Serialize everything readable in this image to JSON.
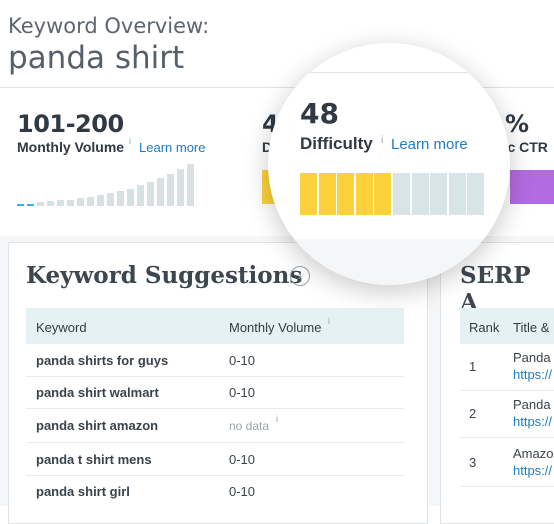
{
  "header": {
    "label": "Keyword Overview:",
    "keyword": "panda shirt"
  },
  "metrics": {
    "volume": {
      "value": "101-200",
      "label": "Monthly Volume",
      "info": "i",
      "learn": "Learn more",
      "bars": [
        0.05,
        0.05,
        0.08,
        0.1,
        0.12,
        0.14,
        0.17,
        0.2,
        0.24,
        0.28,
        0.33,
        0.38,
        0.45,
        0.52,
        0.6,
        0.7,
        0.8,
        0.92
      ],
      "bar_colors": {
        "low": "#3ab0e8",
        "bar": "#d7e1e3"
      }
    },
    "difficulty_partial": {
      "value": "4",
      "label": "D"
    },
    "ctr_partial": {
      "value": "%",
      "label": "nic CTR"
    }
  },
  "lens": {
    "value": "48",
    "label": "Difficulty",
    "info": "i",
    "learn": "Learn more",
    "segments_total": 10,
    "segments_filled": 5,
    "colors": {
      "filled": "#fcd23a",
      "empty": "#d8e4e5"
    }
  },
  "suggestions": {
    "title": "Keyword Suggestions",
    "go_icon": "›",
    "columns": {
      "keyword": "Keyword",
      "volume": "Monthly Volume",
      "volume_info": "i"
    },
    "rows": [
      {
        "keyword": "panda shirts for guys",
        "volume": "0-10"
      },
      {
        "keyword": "panda shirt walmart",
        "volume": "0-10"
      },
      {
        "keyword": "panda shirt amazon",
        "volume": "no data",
        "info": "i"
      },
      {
        "keyword": "panda t shirt mens",
        "volume": "0-10"
      },
      {
        "keyword": "panda shirt girl",
        "volume": "0-10"
      }
    ]
  },
  "serp": {
    "title": "SERP A",
    "columns": {
      "rank": "Rank",
      "title": "Title &"
    },
    "rows": [
      {
        "rank": "1",
        "title": "Panda T",
        "url": "https://"
      },
      {
        "rank": "2",
        "title": "Panda t",
        "url": "https://"
      },
      {
        "rank": "3",
        "title": "Amazo",
        "url": "https://"
      }
    ]
  }
}
